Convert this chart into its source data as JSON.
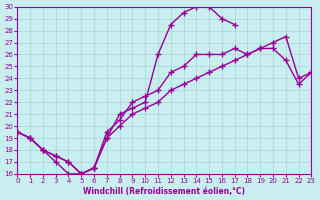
{
  "xlabel": "Windchill (Refroidissement éolien,°C)",
  "xlim": [
    0,
    23
  ],
  "ylim": [
    16,
    30
  ],
  "xticks": [
    0,
    1,
    2,
    3,
    4,
    5,
    6,
    7,
    8,
    9,
    10,
    11,
    12,
    13,
    14,
    15,
    16,
    17,
    18,
    19,
    20,
    21,
    22,
    23
  ],
  "yticks": [
    16,
    17,
    18,
    19,
    20,
    21,
    22,
    23,
    24,
    25,
    26,
    27,
    28,
    29,
    30
  ],
  "bg_color": "#c8eef0",
  "line_color": "#990099",
  "grid_color": "#aad4d8",
  "curve1_x": [
    0,
    1,
    2,
    3,
    4,
    5,
    6,
    7,
    8,
    9,
    10,
    11,
    12,
    13,
    14,
    15,
    16,
    17
  ],
  "curve1_y": [
    19.5,
    19.0,
    18.0,
    17.0,
    16.0,
    16.0,
    16.5,
    19.0,
    21.0,
    21.5,
    22.0,
    26.0,
    28.5,
    29.5,
    30.0,
    30.0,
    29.0,
    28.5
  ],
  "curve2_x": [
    0,
    1,
    2,
    3,
    4,
    5,
    6,
    7,
    8,
    9,
    10,
    11,
    12,
    13,
    14,
    15,
    16,
    17,
    18,
    19,
    20,
    21,
    22,
    23
  ],
  "curve2_y": [
    19.5,
    19.0,
    18.0,
    17.5,
    17.0,
    16.0,
    16.5,
    19.5,
    20.5,
    22.0,
    22.5,
    23.0,
    24.5,
    25.0,
    26.0,
    26.0,
    26.0,
    26.5,
    26.0,
    26.5,
    26.5,
    25.5,
    23.5,
    24.5
  ],
  "curve3_x": [
    0,
    1,
    2,
    3,
    4,
    5,
    6,
    7,
    8,
    9,
    10,
    11,
    12,
    13,
    14,
    15,
    16,
    17,
    18,
    19,
    20,
    21,
    22,
    23
  ],
  "curve3_y": [
    19.5,
    19.0,
    18.0,
    17.5,
    17.0,
    16.0,
    16.5,
    19.0,
    20.0,
    21.0,
    21.5,
    22.0,
    23.0,
    23.5,
    24.0,
    24.5,
    25.0,
    25.5,
    26.0,
    26.5,
    27.0,
    27.5,
    24.0,
    24.5
  ]
}
